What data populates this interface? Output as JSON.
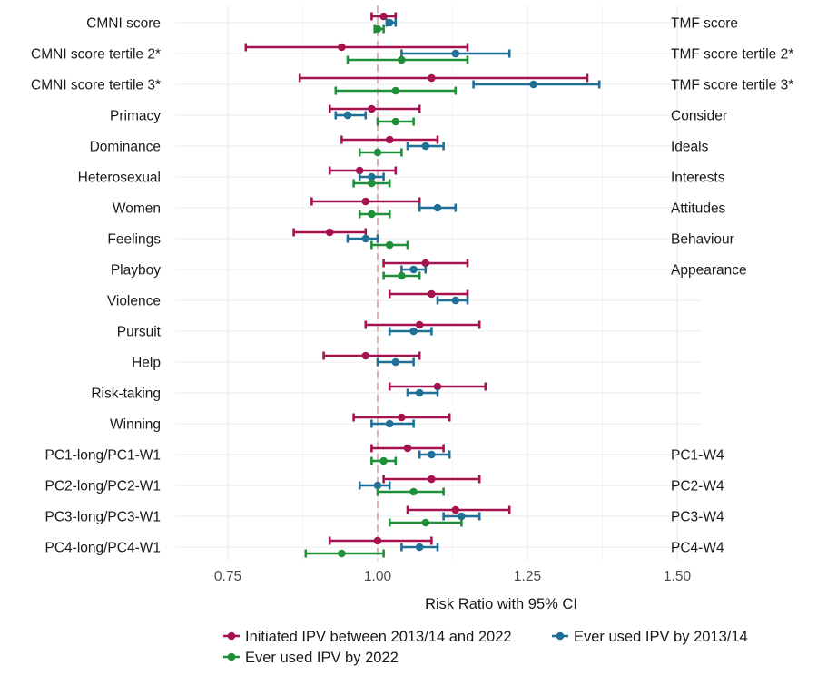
{
  "chart_data": {
    "type": "forest",
    "xlabel": "Risk Ratio with 95% CI",
    "xlim": [
      0.68,
      1.52
    ],
    "xticks": [
      0.75,
      1.0,
      1.25,
      1.5
    ],
    "xtick_labels": [
      "0.75",
      "1.00",
      "1.25",
      "1.50"
    ],
    "reference_line": 1.0,
    "grid": true,
    "legend_position": "bottom",
    "rows": [
      {
        "left": "CMNI score",
        "right": "TMF score"
      },
      {
        "left": "CMNI score tertile 2*",
        "right": "TMF score tertile 2*"
      },
      {
        "left": "CMNI score tertile 3*",
        "right": "TMF score tertile 3*"
      },
      {
        "left": "Primacy",
        "right": "Consider"
      },
      {
        "left": "Dominance",
        "right": "Ideals"
      },
      {
        "left": "Heterosexual",
        "right": "Interests"
      },
      {
        "left": "Women",
        "right": "Attitudes"
      },
      {
        "left": "Feelings",
        "right": "Behaviour"
      },
      {
        "left": "Playboy",
        "right": "Appearance"
      },
      {
        "left": "Violence",
        "right": ""
      },
      {
        "left": "Pursuit",
        "right": ""
      },
      {
        "left": "Help",
        "right": ""
      },
      {
        "left": "Risk-taking",
        "right": ""
      },
      {
        "left": "Winning",
        "right": ""
      },
      {
        "left": "PC1-long/PC1-W1",
        "right": "PC1-W4"
      },
      {
        "left": "PC2-long/PC2-W1",
        "right": "PC2-W4"
      },
      {
        "left": "PC3-long/PC3-W1",
        "right": "PC3-W4"
      },
      {
        "left": "PC4-long/PC4-W1",
        "right": "PC4-W4"
      }
    ],
    "series": [
      {
        "name": "Initiated IPV between 2013/14 and 2022",
        "color": "#a6124f",
        "offset": -1,
        "points": [
          {
            "row": 0,
            "est": 1.01,
            "lo": 0.99,
            "hi": 1.03
          },
          {
            "row": 1,
            "est": 0.94,
            "lo": 0.78,
            "hi": 1.15
          },
          {
            "row": 2,
            "est": 1.09,
            "lo": 0.87,
            "hi": 1.35
          },
          {
            "row": 3,
            "est": 0.99,
            "lo": 0.92,
            "hi": 1.07
          },
          {
            "row": 4,
            "est": 1.02,
            "lo": 0.94,
            "hi": 1.1
          },
          {
            "row": 5,
            "est": 0.97,
            "lo": 0.92,
            "hi": 1.03
          },
          {
            "row": 6,
            "est": 0.98,
            "lo": 0.89,
            "hi": 1.07
          },
          {
            "row": 7,
            "est": 0.92,
            "lo": 0.86,
            "hi": 0.98
          },
          {
            "row": 8,
            "est": 1.08,
            "lo": 1.01,
            "hi": 1.15
          },
          {
            "row": 9,
            "est": 1.09,
            "lo": 1.02,
            "hi": 1.15
          },
          {
            "row": 10,
            "est": 1.07,
            "lo": 0.98,
            "hi": 1.17
          },
          {
            "row": 11,
            "est": 0.98,
            "lo": 0.91,
            "hi": 1.07
          },
          {
            "row": 12,
            "est": 1.1,
            "lo": 1.02,
            "hi": 1.18
          },
          {
            "row": 13,
            "est": 1.04,
            "lo": 0.96,
            "hi": 1.12
          },
          {
            "row": 14,
            "est": 1.05,
            "lo": 0.99,
            "hi": 1.11
          },
          {
            "row": 15,
            "est": 1.09,
            "lo": 1.01,
            "hi": 1.17
          },
          {
            "row": 16,
            "est": 1.13,
            "lo": 1.05,
            "hi": 1.22
          },
          {
            "row": 17,
            "est": 1.0,
            "lo": 0.92,
            "hi": 1.09
          }
        ]
      },
      {
        "name": "Ever used IPV by 2013/14",
        "color": "#1f6f96",
        "offset": 0,
        "points": [
          {
            "row": 0,
            "est": 1.02,
            "lo": 1.015,
            "hi": 1.03
          },
          {
            "row": 1,
            "est": 1.13,
            "lo": 1.04,
            "hi": 1.22
          },
          {
            "row": 2,
            "est": 1.26,
            "lo": 1.16,
            "hi": 1.37
          },
          {
            "row": 3,
            "est": 0.95,
            "lo": 0.93,
            "hi": 0.98
          },
          {
            "row": 4,
            "est": 1.08,
            "lo": 1.05,
            "hi": 1.11
          },
          {
            "row": 5,
            "est": 0.99,
            "lo": 0.97,
            "hi": 1.01
          },
          {
            "row": 6,
            "est": 1.1,
            "lo": 1.07,
            "hi": 1.13
          },
          {
            "row": 7,
            "est": 0.98,
            "lo": 0.95,
            "hi": 1.0
          },
          {
            "row": 8,
            "est": 1.06,
            "lo": 1.04,
            "hi": 1.08
          },
          {
            "row": 9,
            "est": 1.13,
            "lo": 1.1,
            "hi": 1.15
          },
          {
            "row": 10,
            "est": 1.06,
            "lo": 1.02,
            "hi": 1.09
          },
          {
            "row": 11,
            "est": 1.03,
            "lo": 1.0,
            "hi": 1.06
          },
          {
            "row": 12,
            "est": 1.07,
            "lo": 1.05,
            "hi": 1.1
          },
          {
            "row": 13,
            "est": 1.02,
            "lo": 0.99,
            "hi": 1.06
          },
          {
            "row": 14,
            "est": 1.09,
            "lo": 1.07,
            "hi": 1.12
          },
          {
            "row": 15,
            "est": 1.0,
            "lo": 0.97,
            "hi": 1.02
          },
          {
            "row": 16,
            "est": 1.14,
            "lo": 1.11,
            "hi": 1.17
          },
          {
            "row": 17,
            "est": 1.07,
            "lo": 1.04,
            "hi": 1.1
          }
        ]
      },
      {
        "name": "Ever used IPV by 2022",
        "color": "#1f8f3a",
        "offset": 1,
        "points": [
          {
            "row": 0,
            "est": 1.0,
            "lo": 0.995,
            "hi": 1.01
          },
          {
            "row": 1,
            "est": 1.04,
            "lo": 0.95,
            "hi": 1.15
          },
          {
            "row": 2,
            "est": 1.03,
            "lo": 0.93,
            "hi": 1.13
          },
          {
            "row": 3,
            "est": 1.03,
            "lo": 1.0,
            "hi": 1.06
          },
          {
            "row": 4,
            "est": 1.0,
            "lo": 0.97,
            "hi": 1.04
          },
          {
            "row": 5,
            "est": 0.99,
            "lo": 0.96,
            "hi": 1.02
          },
          {
            "row": 6,
            "est": 0.99,
            "lo": 0.97,
            "hi": 1.02
          },
          {
            "row": 7,
            "est": 1.02,
            "lo": 0.99,
            "hi": 1.05
          },
          {
            "row": 8,
            "est": 1.04,
            "lo": 1.01,
            "hi": 1.07
          },
          {
            "row": 14,
            "est": 1.01,
            "lo": 0.99,
            "hi": 1.03
          },
          {
            "row": 15,
            "est": 1.06,
            "lo": 1.0,
            "hi": 1.11
          },
          {
            "row": 16,
            "est": 1.08,
            "lo": 1.02,
            "hi": 1.14
          },
          {
            "row": 17,
            "est": 0.94,
            "lo": 0.88,
            "hi": 1.01
          }
        ]
      }
    ]
  }
}
